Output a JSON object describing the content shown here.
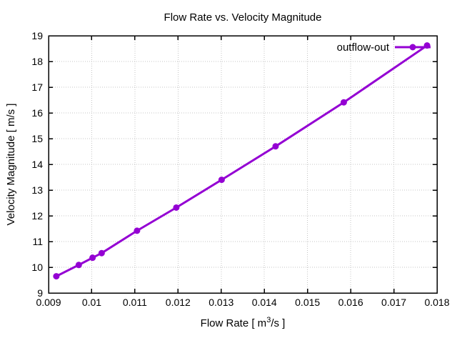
{
  "window": {
    "background": "#ffffff",
    "foreground": "#000000",
    "grid_color": "#c4c4c4"
  },
  "chart_data": {
    "type": "line",
    "title": "Flow Rate vs. Velocity Magnitude",
    "xlabel": {
      "pre": "Flow Rate [ m",
      "sup": "3",
      "post": "/s ]"
    },
    "ylabel": "Velocity Magnitude [ m/s ]",
    "xlim": [
      0.009,
      0.018
    ],
    "ylim": [
      9,
      19
    ],
    "xticks": {
      "values": [
        0.009,
        0.01,
        0.011,
        0.012,
        0.013,
        0.014,
        0.015,
        0.016,
        0.017,
        0.018
      ],
      "labels": [
        "0.009",
        "0.01",
        "0.011",
        "0.012",
        "0.013",
        "0.014",
        "0.015",
        "0.016",
        "0.017",
        "0.018"
      ]
    },
    "yticks": {
      "values": [
        9,
        10,
        11,
        12,
        13,
        14,
        15,
        16,
        17,
        18,
        19
      ],
      "labels": [
        "9",
        "10",
        "11",
        "12",
        "13",
        "14",
        "15",
        "16",
        "17",
        "18",
        "19"
      ]
    },
    "grid": true,
    "grid_style": "dotted",
    "legend": {
      "label": "outflow-out",
      "position": "top-right"
    },
    "series": [
      {
        "name": "outflow-out",
        "color": "#9400d3",
        "marker": "circle",
        "line_width": 3,
        "x": [
          0.00918,
          0.0097,
          0.01002,
          0.01023,
          0.01105,
          0.01196,
          0.01301,
          0.01426,
          0.01584,
          0.01777
        ],
        "y": [
          9.65,
          10.09,
          10.37,
          10.55,
          11.42,
          12.32,
          13.4,
          14.7,
          16.41,
          18.62
        ]
      }
    ]
  }
}
